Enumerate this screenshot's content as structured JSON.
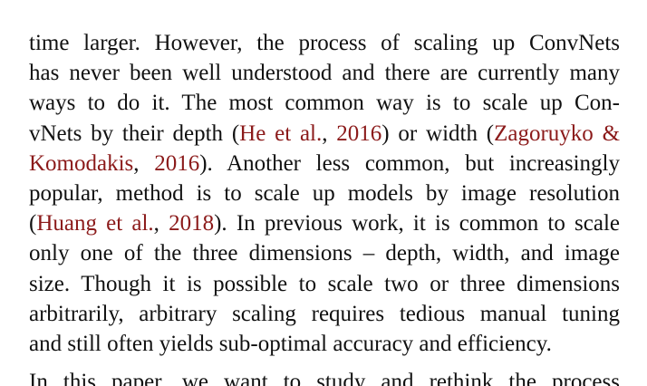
{
  "paragraph": {
    "lines": [
      [
        {
          "text": "time larger. However, the process of scaling up ConvNets"
        }
      ],
      [
        {
          "text": "has never been well understood and there are currently many"
        }
      ],
      [
        {
          "text": "ways to do it. The most common way is to scale up Con-"
        }
      ],
      [
        {
          "text": "vNets by their depth ("
        },
        {
          "text": "He et al.",
          "cite": true
        },
        {
          "text": ", "
        },
        {
          "text": "2016",
          "cite": true
        },
        {
          "text": ") or width ("
        },
        {
          "text": "Zagoruyko &",
          "cite": true
        }
      ],
      [
        {
          "text": "Komodakis",
          "cite": true
        },
        {
          "text": ", "
        },
        {
          "text": "2016",
          "cite": true
        },
        {
          "text": "). Another less common, but increasingly"
        }
      ],
      [
        {
          "text": "popular, method is to scale up models by image resolution"
        }
      ],
      [
        {
          "text": "("
        },
        {
          "text": "Huang et al.",
          "cite": true
        },
        {
          "text": ", "
        },
        {
          "text": "2018",
          "cite": true
        },
        {
          "text": "). In previous work, it is common to scale"
        }
      ],
      [
        {
          "text": "only one of the three dimensions – depth, width, and image"
        }
      ],
      [
        {
          "text": "size. Though it is possible to scale two or three dimensions"
        }
      ],
      [
        {
          "text": "arbitrarily, arbitrary scaling requires tedious manual tuning"
        }
      ],
      [
        {
          "text": "and still often yields sub-optimal accuracy and efficiency."
        }
      ]
    ]
  },
  "next_paragraph": {
    "first_line": "In this paper, we want to study and rethink the process"
  },
  "colors": {
    "text": "#111111",
    "citation": "#8b1a1a"
  }
}
